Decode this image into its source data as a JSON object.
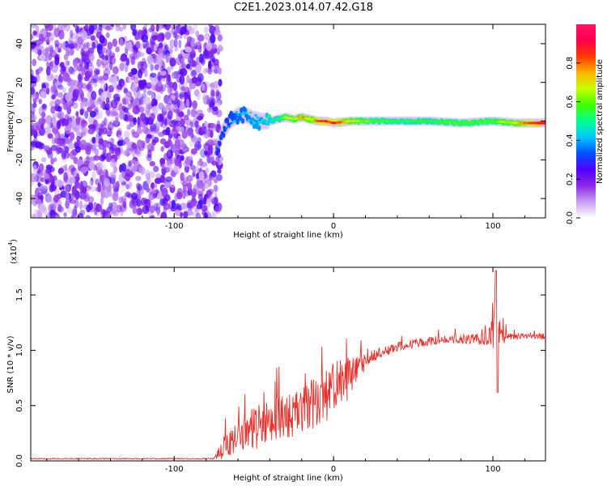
{
  "title": "C2E1.2023.014.07.42.G18",
  "chart_data": [
    {
      "type": "heatmap",
      "title": "C2E1.2023.014.07.42.G18",
      "xlabel": "Height of straight line (km)",
      "ylabel": "Frequency (Hz)",
      "xlim": [
        -190,
        133
      ],
      "ylim": [
        -50,
        50
      ],
      "xticks": [
        -100,
        0,
        100
      ],
      "xtick_labels": [
        "-100",
        "0",
        "100"
      ],
      "yticks": [
        -40,
        -20,
        0,
        20,
        40
      ],
      "ytick_labels": [
        "-40",
        "-20",
        "0",
        "20",
        "40"
      ],
      "colorbar": {
        "label": "Normalized spectral amplitude",
        "range": [
          0.0,
          1.0
        ],
        "ticks": [
          0.0,
          0.2,
          0.4,
          0.6,
          0.8
        ],
        "tick_labels": [
          "0.0",
          "0.2",
          "0.4",
          "0.6",
          "0.8"
        ],
        "colors": [
          "#ffffff",
          "#c8a0f0",
          "#8c28e6",
          "#5000ff",
          "#0050ff",
          "#00c8ff",
          "#00ff90",
          "#40ff00",
          "#c8ff00",
          "#ffb400",
          "#ff3c00",
          "#ff0050",
          "#ff1464"
        ]
      },
      "noise_region_end_km": -75,
      "signal_track": {
        "x": [
          -73,
          -70,
          -65,
          -60,
          -55,
          -50,
          -45,
          -40,
          -35,
          -30,
          -25,
          -20,
          -15,
          -10,
          -5,
          0,
          10,
          20,
          40,
          60,
          80,
          100,
          115,
          133
        ],
        "freq": [
          -14,
          -6,
          0,
          3,
          3,
          1,
          0,
          0,
          1,
          2,
          1,
          2,
          1,
          0,
          0,
          -1,
          0,
          0,
          0,
          0,
          -1,
          0,
          -1,
          -1
        ],
        "amplitude": [
          0.3,
          0.35,
          0.35,
          0.4,
          0.4,
          0.45,
          0.45,
          0.5,
          0.5,
          0.65,
          0.65,
          0.75,
          0.7,
          0.8,
          0.85,
          0.85,
          0.7,
          0.6,
          0.55,
          0.55,
          0.6,
          0.6,
          0.7,
          0.95
        ]
      }
    },
    {
      "type": "line",
      "xlabel": "Height of straight line (km)",
      "ylabel": "SNR (10 * v/v)",
      "y_multiplier": "(x10",
      "y_multiplier_exp": "4",
      "y_multiplier_close": ")",
      "xlim": [
        -190,
        133
      ],
      "ylim": [
        0,
        1.75
      ],
      "xticks": [
        -100,
        0,
        100
      ],
      "xtick_labels": [
        "-100",
        "0",
        "100"
      ],
      "yticks": [
        0.0,
        0.5,
        1.0,
        1.5
      ],
      "ytick_labels": [
        "0.0",
        "0.5",
        "1.0",
        "1.5"
      ],
      "color": "#e8302a",
      "series": [
        {
          "name": "SNR",
          "x": [
            -190,
            -75,
            -70,
            -60,
            -50,
            -40,
            -30,
            -20,
            -10,
            0,
            10,
            20,
            30,
            40,
            50,
            60,
            70,
            80,
            90,
            100,
            102,
            105,
            110,
            120,
            133
          ],
          "y": [
            0.02,
            0.02,
            0.1,
            0.22,
            0.3,
            0.35,
            0.4,
            0.45,
            0.55,
            0.65,
            0.75,
            0.9,
            0.98,
            1.03,
            1.06,
            1.08,
            1.1,
            1.1,
            1.11,
            1.12,
            1.4,
            1.1,
            1.12,
            1.13,
            1.12
          ],
          "noise_amplitude": [
            0.005,
            0.005,
            0.1,
            0.15,
            0.2,
            0.2,
            0.22,
            0.2,
            0.25,
            0.25,
            0.2,
            0.08,
            0.05,
            0.04,
            0.04,
            0.04,
            0.04,
            0.04,
            0.05,
            0.15,
            0.3,
            0.1,
            0.03,
            0.02,
            0.03
          ]
        }
      ]
    }
  ]
}
